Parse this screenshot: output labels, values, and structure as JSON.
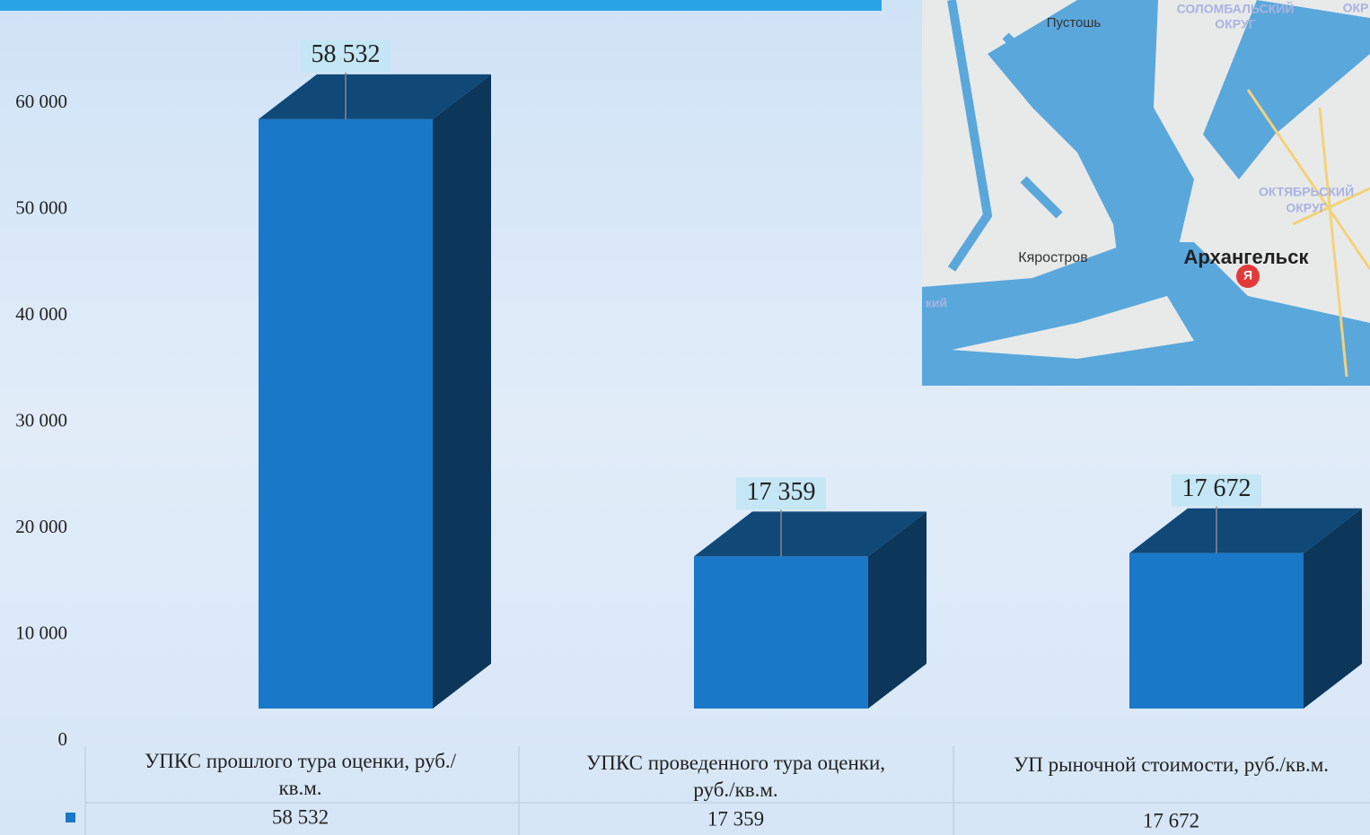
{
  "chart_data": {
    "type": "bar3d",
    "categories": [
      "УПКС прошлого тура оценки, руб./кв.м.",
      "УПКС проведенного тура оценки, руб./кв.м.",
      "УП рыночной стоимости, руб./кв.м."
    ],
    "values": [
      58532,
      17359,
      17672
    ],
    "value_labels": [
      "58 532",
      "17 359",
      "17 672"
    ],
    "color": "#1a78c8",
    "ylim": [
      0,
      70000
    ],
    "yticks": [
      0,
      {
        "value": 10000,
        "label": "10 000"
      },
      {
        "value": 20000,
        "label": "20 000"
      },
      {
        "value": 30000,
        "label": "30 000"
      },
      {
        "value": 40000,
        "label": "40 000"
      },
      {
        "value": 50000,
        "label": "50 000"
      },
      {
        "value": 60000,
        "label": "60 000"
      }
    ],
    "data_table": true
  },
  "map": {
    "labels": [
      "Пустошь",
      "СОЛОМБАЛЬСКИЙ",
      "ОКРУГ",
      "ОКР",
      "ОКТЯБРЬСКИЙ",
      "ОКРУГ",
      "Кяростров",
      "Архангельск",
      "Я",
      "кий"
    ]
  }
}
